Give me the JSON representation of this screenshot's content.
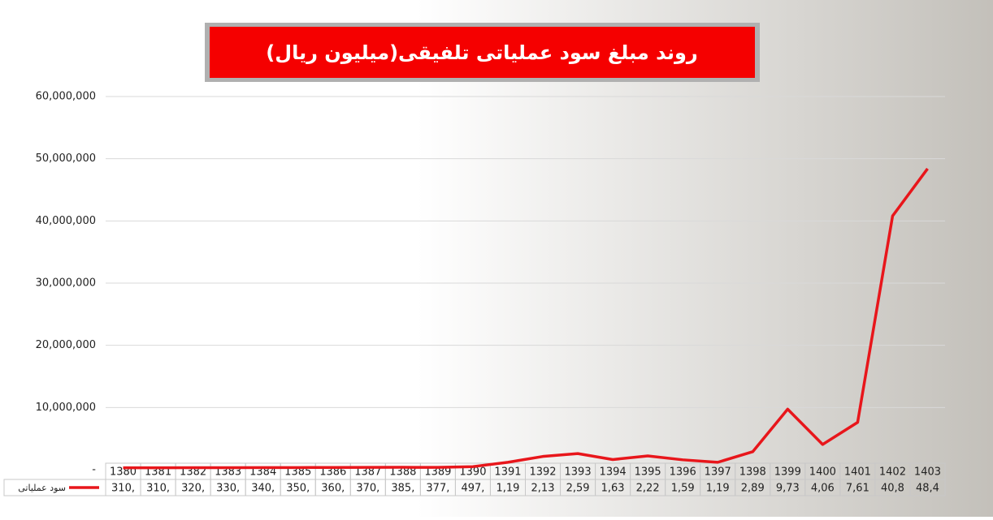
{
  "chart_data": {
    "type": "line",
    "title": "روند مبلغ سود عملیاتی تلفیقی(میلیون ریال)",
    "categories": [
      "1380",
      "1381",
      "1382",
      "1383",
      "1384",
      "1385",
      "1386",
      "1387",
      "1388",
      "1389",
      "1390",
      "1391",
      "1392",
      "1393",
      "1394",
      "1395",
      "1396",
      "1397",
      "1398",
      "1399",
      "1400",
      "1401",
      "1402",
      "1403"
    ],
    "series": [
      {
        "name": "سود عملیاتی",
        "color": "#e8161b",
        "values": [
          310000,
          310000,
          320000,
          330000,
          340000,
          350000,
          360000,
          370000,
          385000,
          377000,
          497000,
          1190000,
          2130000,
          2590000,
          1630000,
          2220000,
          1590000,
          1190000,
          2890000,
          9730000,
          4060000,
          7610000,
          40800000,
          48400000
        ],
        "value_labels": [
          "310,",
          "310,",
          "320,",
          "330,",
          "340,",
          "350,",
          "360,",
          "370,",
          "385,",
          "377,",
          "497,",
          "1,19",
          "2,13",
          "2,59",
          "1,63",
          "2,22",
          "1,59",
          "1,19",
          "2,89",
          "9,73",
          "4,06",
          "7,61",
          "40,8",
          "48,4"
        ]
      }
    ],
    "ylim": [
      0,
      60000000
    ],
    "yticks": [
      {
        "value": 0,
        "label": "-"
      },
      {
        "value": 10000000,
        "label": "10,000,000"
      },
      {
        "value": 20000000,
        "label": "20,000,000"
      },
      {
        "value": 30000000,
        "label": "30,000,000"
      },
      {
        "value": 40000000,
        "label": "40,000,000"
      },
      {
        "value": 50000000,
        "label": "50,000,000"
      },
      {
        "value": 60000000,
        "label": "60,000,000"
      }
    ],
    "grid": true
  }
}
